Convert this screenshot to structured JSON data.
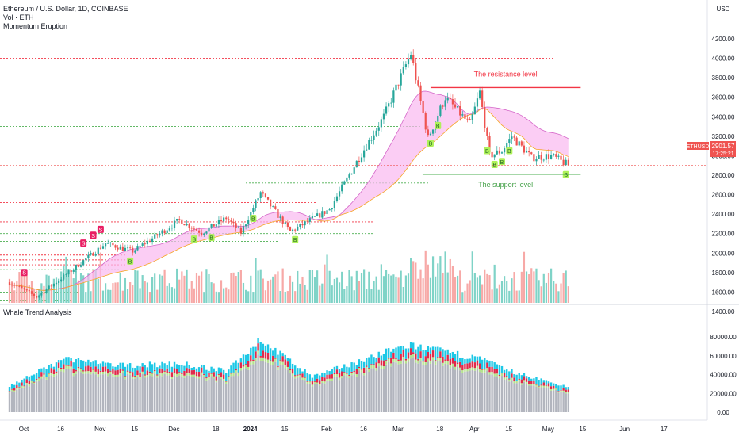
{
  "header": {
    "title": "Ethereum / U.S. Dollar, 1D, COINBASE",
    "volume_label": "Vol · ETH",
    "indicator_label": "Momentum Eruption",
    "currency": "USD",
    "lower_panel_title": "Whale Trend Analysis"
  },
  "price_tag": {
    "symbol": "ETHUSD",
    "price": "2901.57",
    "countdown": "17:25:21"
  },
  "annotations": {
    "resistance": "The resistance level",
    "support": "The support level"
  },
  "colors": {
    "up": "#26a69a",
    "down": "#ef5350",
    "up_vol": "#7fd3c7",
    "down_vol": "#f7a9a7",
    "ribbon": "#f9b8f0",
    "resistance": "#f23645",
    "support": "#4caf50",
    "whale_cyan": "#1ec8e6",
    "whale_red": "#e0294a",
    "whale_green": "#b5e28f",
    "whale_gray": "#b2b5be"
  },
  "chart_data": [
    {
      "type": "candlestick",
      "title": "Ethereum / U.S. Dollar, 1D, COINBASE",
      "ylabel": "USD",
      "y_ticks": [
        "4200.00",
        "4000.00",
        "3800.00",
        "3600.00",
        "3400.00",
        "3200.00",
        "3000.00",
        "2800.00",
        "2600.00",
        "2400.00",
        "2200.00",
        "2000.00",
        "1800.00",
        "1600.00",
        "1400.00"
      ],
      "x_ticks": [
        "Oct",
        "16",
        "Nov",
        "15",
        "Dec",
        "18",
        "2024",
        "15",
        "Feb",
        "16",
        "Mar",
        "18",
        "Apr",
        "15",
        "May",
        "15",
        "Jun",
        "17"
      ],
      "ylim": [
        1300,
        4260
      ],
      "key_points": [
        {
          "date": "2023-10-01",
          "close": 1700
        },
        {
          "date": "2023-10-12",
          "close": 1550
        },
        {
          "date": "2023-10-24",
          "close": 1780
        },
        {
          "date": "2023-11-09",
          "close": 2100
        },
        {
          "date": "2023-11-20",
          "close": 2020
        },
        {
          "date": "2023-12-01",
          "close": 2200
        },
        {
          "date": "2023-12-09",
          "close": 2340
        },
        {
          "date": "2023-12-18",
          "close": 2210
        },
        {
          "date": "2023-12-28",
          "close": 2360
        },
        {
          "date": "2024-01-03",
          "close": 2210
        },
        {
          "date": "2024-01-11",
          "close": 2620
        },
        {
          "date": "2024-01-23",
          "close": 2220
        },
        {
          "date": "2024-02-08",
          "close": 2450
        },
        {
          "date": "2024-02-20",
          "close": 2980
        },
        {
          "date": "2024-03-01",
          "close": 3400
        },
        {
          "date": "2024-03-12",
          "close": 4050
        },
        {
          "date": "2024-03-19",
          "close": 3180
        },
        {
          "date": "2024-03-26",
          "close": 3600
        },
        {
          "date": "2024-04-05",
          "close": 3320
        },
        {
          "date": "2024-04-09",
          "close": 3650
        },
        {
          "date": "2024-04-13",
          "close": 3000
        },
        {
          "date": "2024-04-18",
          "close": 3050
        },
        {
          "date": "2024-04-22",
          "close": 3200
        },
        {
          "date": "2024-04-30",
          "close": 2980
        },
        {
          "date": "2024-05-08",
          "close": 3000
        },
        {
          "date": "2024-05-15",
          "close": 2902
        }
      ],
      "resistance_level": 3700,
      "support_level": 2810,
      "signal_markers": [
        {
          "label": "S",
          "date": "2023-10-07"
        },
        {
          "label": "S",
          "date": "2023-10-31"
        },
        {
          "label": "S",
          "date": "2023-11-04"
        },
        {
          "label": "S",
          "date": "2023-11-07"
        },
        {
          "label": "B",
          "date": "2023-11-19"
        },
        {
          "label": "B",
          "date": "2023-12-15"
        },
        {
          "label": "B",
          "date": "2023-12-22"
        },
        {
          "label": "B",
          "date": "2024-01-08"
        },
        {
          "label": "B",
          "date": "2024-01-25"
        },
        {
          "label": "B",
          "date": "2024-03-20"
        },
        {
          "label": "B",
          "date": "2024-03-23"
        },
        {
          "label": "B",
          "date": "2024-04-12"
        },
        {
          "label": "B",
          "date": "2024-04-15"
        },
        {
          "label": "B",
          "date": "2024-04-18"
        },
        {
          "label": "B",
          "date": "2024-04-21"
        },
        {
          "label": "B",
          "date": "2024-05-14"
        }
      ]
    },
    {
      "type": "bar",
      "title": "Whale Trend Analysis",
      "y_ticks": [
        "80000.00",
        "60000.00",
        "40000.00",
        "20000.00",
        "0.00"
      ],
      "ylim": [
        0,
        84000
      ],
      "series": [],
      "key_points": [
        {
          "date": "2023-10-01",
          "value": 28000
        },
        {
          "date": "2023-10-24",
          "value": 58000
        },
        {
          "date": "2023-11-12",
          "value": 50000
        },
        {
          "date": "2023-12-10",
          "value": 52000
        },
        {
          "date": "2023-12-28",
          "value": 44000
        },
        {
          "date": "2024-01-11",
          "value": 78000
        },
        {
          "date": "2024-02-01",
          "value": 38000
        },
        {
          "date": "2024-03-07",
          "value": 69000
        },
        {
          "date": "2024-03-12",
          "value": 72000
        },
        {
          "date": "2024-04-10",
          "value": 57000
        },
        {
          "date": "2024-04-20",
          "value": 45000
        },
        {
          "date": "2024-05-15",
          "value": 27000
        }
      ]
    }
  ]
}
